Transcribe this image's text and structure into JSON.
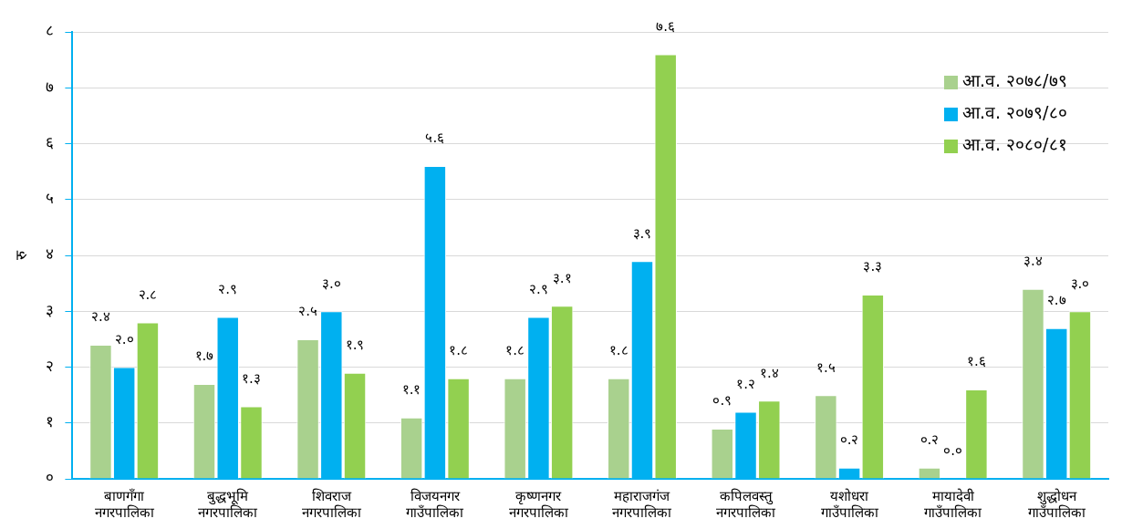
{
  "chart_data": {
    "type": "bar",
    "ylabel": "रु",
    "categories": [
      "बाणगँगा\nनगरपालिका",
      "बुद्धभूमि\nनगरपालिका",
      "शिवराज\nनगरपालिका",
      "विजयनगर\nगाउँपालिका",
      "कृष्णनगर\nनगरपालिका",
      "महाराजगंज\nनगरपालिका",
      "कपिलवस्तु\nनगरपालिका",
      "यशोधरा\nगाउँपालिका",
      "मायादेवी\nगाउँपालिका",
      "शुद्धोधन\nगाउँपालिका"
    ],
    "series": [
      {
        "name": "आ.व. २०७८/७९",
        "color": "#a9d18e",
        "values": [
          2.4,
          1.7,
          2.5,
          1.1,
          1.8,
          1.8,
          0.9,
          1.5,
          0.2,
          3.4
        ],
        "value_labels": [
          "२.४",
          "१.७",
          "२.५",
          "१.१",
          "१.८",
          "१.८",
          "०.९",
          "१.५",
          "०.२",
          "३.४"
        ]
      },
      {
        "name": "आ.व. २०७९/८०",
        "color": "#00b0f0",
        "values": [
          2.0,
          2.9,
          3.0,
          5.6,
          2.9,
          3.9,
          1.2,
          0.2,
          0.0,
          2.7
        ],
        "value_labels": [
          "२.०",
          "२.९",
          "३.०",
          "५.६",
          "२.९",
          "३.९",
          "१.२",
          "०.२",
          "०.०",
          "२.७"
        ]
      },
      {
        "name": "आ.व. २०८०/८१",
        "color": "#92d050",
        "values": [
          2.8,
          1.3,
          1.9,
          1.8,
          3.1,
          7.6,
          1.4,
          3.3,
          1.6,
          3.0
        ],
        "value_labels": [
          "२.८",
          "१.३",
          "१.९",
          "१.८",
          "३.१",
          "७.६",
          "१.४",
          "३.३",
          "१.६",
          "३.०"
        ]
      }
    ],
    "ylim": [
      0,
      8
    ],
    "yticks": [
      {
        "value": 0,
        "label": "०"
      },
      {
        "value": 1,
        "label": "१"
      },
      {
        "value": 2,
        "label": "२"
      },
      {
        "value": 3,
        "label": "३"
      },
      {
        "value": 4,
        "label": "४"
      },
      {
        "value": 5,
        "label": "५"
      },
      {
        "value": 6,
        "label": "६"
      },
      {
        "value": 7,
        "label": "७"
      },
      {
        "value": 8,
        "label": "८"
      }
    ],
    "grid": "y",
    "legend": "top right"
  }
}
